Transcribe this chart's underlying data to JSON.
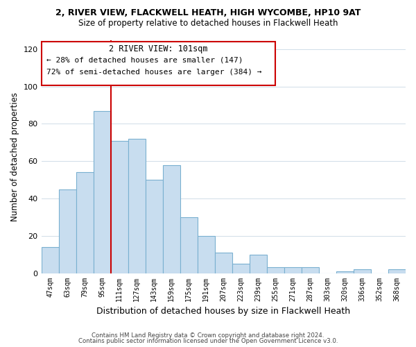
{
  "title1": "2, RIVER VIEW, FLACKWELL HEATH, HIGH WYCOMBE, HP10 9AT",
  "title2": "Size of property relative to detached houses in Flackwell Heath",
  "xlabel": "Distribution of detached houses by size in Flackwell Heath",
  "ylabel": "Number of detached properties",
  "categories": [
    "47sqm",
    "63sqm",
    "79sqm",
    "95sqm",
    "111sqm",
    "127sqm",
    "143sqm",
    "159sqm",
    "175sqm",
    "191sqm",
    "207sqm",
    "223sqm",
    "239sqm",
    "255sqm",
    "271sqm",
    "287sqm",
    "303sqm",
    "320sqm",
    "336sqm",
    "352sqm",
    "368sqm"
  ],
  "values": [
    14,
    45,
    54,
    87,
    71,
    72,
    50,
    58,
    30,
    20,
    11,
    5,
    10,
    3,
    3,
    3,
    0,
    1,
    2,
    0,
    2
  ],
  "bar_color": "#c8ddef",
  "bar_edge_color": "#7ab0d0",
  "vline_x": 3.5,
  "vline_color": "#cc0000",
  "annotation_title": "2 RIVER VIEW: 101sqm",
  "annotation_line1": "← 28% of detached houses are smaller (147)",
  "annotation_line2": "72% of semi-detached houses are larger (384) →",
  "annotation_box_color": "#ffffff",
  "annotation_box_edge": "#cc0000",
  "ylim": [
    0,
    125
  ],
  "yticks": [
    0,
    20,
    40,
    60,
    80,
    100,
    120
  ],
  "grid_color": "#d0dde8",
  "footer1": "Contains HM Land Registry data © Crown copyright and database right 2024.",
  "footer2": "Contains public sector information licensed under the Open Government Licence v3.0."
}
